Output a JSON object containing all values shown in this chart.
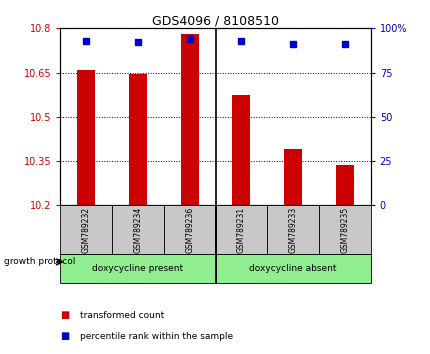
{
  "title": "GDS4096 / 8108510",
  "samples": [
    "GSM789232",
    "GSM789234",
    "GSM789236",
    "GSM789231",
    "GSM789233",
    "GSM789235"
  ],
  "bar_values": [
    10.66,
    10.645,
    10.78,
    10.575,
    10.39,
    10.335
  ],
  "percentile_values": [
    93,
    92,
    94,
    93,
    91,
    91
  ],
  "bar_color": "#cc0000",
  "dot_color": "#0000cc",
  "ylim_left": [
    10.2,
    10.8
  ],
  "ylim_right": [
    0,
    100
  ],
  "yticks_left": [
    10.2,
    10.35,
    10.5,
    10.65,
    10.8
  ],
  "yticks_right": [
    0,
    25,
    50,
    75,
    100
  ],
  "ytick_labels_left": [
    "10.2",
    "10.35",
    "10.5",
    "10.65",
    "10.8"
  ],
  "ytick_labels_right": [
    "0",
    "25",
    "50",
    "75",
    "100%"
  ],
  "group_protocol_label": "growth protocol",
  "group1_label": "doxycycline present",
  "group2_label": "doxycycline absent",
  "legend_label1": "transformed count",
  "legend_label2": "percentile rank within the sample",
  "bar_bottom": 10.2,
  "background_color": "#ffffff",
  "plot_bg_color": "#ffffff",
  "bar_color_red": "#cc0000",
  "dot_color_blue": "#0000cc",
  "gray_box_color": "#c8c8c8",
  "green_box_color": "#90ee90",
  "bar_width": 0.35,
  "tick_color_left": "#cc0000",
  "tick_color_right": "#0000cc"
}
